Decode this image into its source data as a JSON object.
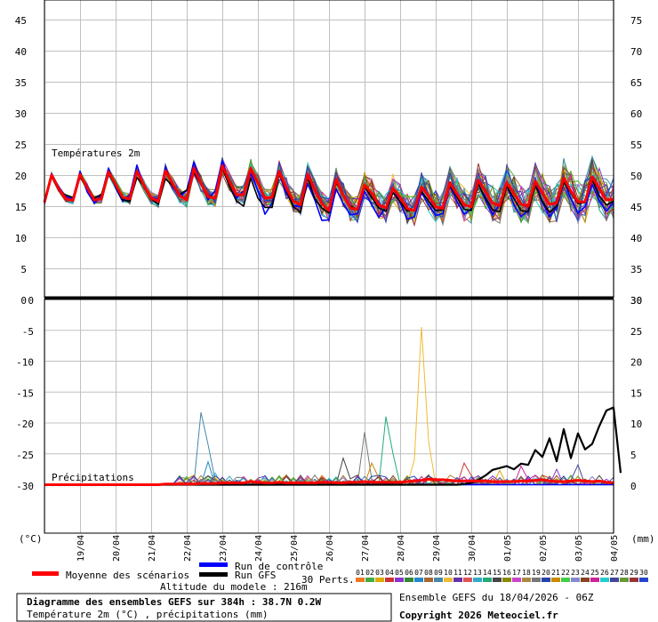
{
  "chart_data": [
    {
      "type": "line",
      "title": "Températures 2m",
      "unit": "(°C)",
      "left_ticks": [
        "45",
        "40",
        "35",
        "30",
        "25",
        "20",
        "15",
        "10",
        "5",
        "0"
      ],
      "right_ticks": [
        "75",
        "70",
        "65",
        "60",
        "55",
        "50",
        "45",
        "40",
        "35",
        "30"
      ],
      "ylim": [
        0,
        48
      ],
      "x_step_days": 0.25,
      "series": [
        {
          "name": "Moyenne des scénarios",
          "color": "#ff0000",
          "values": [
            15.6,
            20.0,
            17.8,
            16.2,
            15.9,
            20.1,
            18.0,
            16.0,
            16.2,
            20.5,
            18.5,
            16.4,
            16.2,
            20.6,
            18.3,
            16.3,
            15.8,
            20.7,
            18.6,
            16.7,
            16.0,
            21.1,
            18.6,
            16.5,
            16.3,
            21.5,
            19.0,
            16.8,
            16.9,
            21.1,
            18.7,
            16.3,
            16.4,
            20.6,
            17.9,
            15.8,
            15.2,
            20.1,
            17.6,
            15.4,
            14.3,
            19.3,
            16.8,
            14.7,
            14.5,
            18.4,
            17.1,
            15.2,
            14.7,
            17.9,
            16.4,
            14.6,
            14.3,
            18.1,
            16.6,
            14.9,
            14.6,
            18.8,
            16.9,
            15.2,
            14.9,
            19.2,
            17.3,
            15.5,
            15.1,
            18.8,
            17.0,
            15.3,
            15.0,
            19.0,
            17.1,
            15.3,
            15.5,
            19.5,
            17.4,
            15.7,
            15.7,
            19.7,
            17.8,
            16.0,
            16.1
          ]
        },
        {
          "name": "Run de contrôle",
          "color": "#0000ff",
          "values": [
            15.6,
            20.2,
            18.1,
            16.5,
            16.2,
            20.6,
            17.3,
            15.5,
            16.7,
            21.1,
            18.0,
            15.8,
            16.8,
            21.6,
            18.0,
            16.3,
            16.2,
            21.3,
            18.1,
            16.5,
            17.5,
            22.1,
            18.7,
            16.0,
            17.5,
            22.3,
            18.9,
            16.3,
            17.5,
            20.3,
            17.5,
            13.7,
            15.5,
            20.2,
            17.1,
            15.1,
            14.9,
            18.6,
            16.0,
            12.7,
            12.8,
            17.8,
            15.4,
            13.6,
            13.8,
            17.4,
            15.2,
            13.2,
            14.8,
            17.9,
            15.6,
            12.9,
            13.3,
            17.2,
            15.2,
            13.5,
            13.8,
            18.3,
            15.7,
            13.7,
            14.6,
            18.6,
            15.9,
            13.6,
            15.3,
            18.3,
            15.2,
            13.3,
            14.3,
            19.0,
            15.6,
            13.3,
            14.7,
            19.3,
            16.2,
            13.9,
            14.9,
            18.5,
            15.8,
            14.2,
            15.6
          ]
        },
        {
          "name": "Run GFS",
          "color": "#000000",
          "values": [
            15.6,
            19.8,
            17.5,
            16.8,
            16.4,
            19.7,
            17.8,
            16.3,
            16.9,
            20.2,
            18.2,
            16.0,
            15.8,
            19.6,
            18.2,
            16.2,
            15.3,
            19.4,
            18.3,
            16.9,
            17.6,
            20.4,
            18.5,
            16.7,
            16.4,
            21.1,
            18.2,
            15.8,
            15.0,
            19.5,
            16.3,
            14.8,
            14.8,
            20.2,
            17.6,
            14.9,
            14.0,
            19.6,
            16.2,
            14.7,
            13.9,
            18.8,
            16.8,
            15.0,
            14.5,
            18.1,
            16.4,
            14.7,
            14.2,
            17.2,
            15.7,
            14.2,
            14.5,
            17.4,
            15.8,
            14.3,
            14.4,
            18.4,
            16.4,
            14.5,
            14.3,
            18.5,
            16.3,
            14.4,
            14.1,
            18.2,
            16.2,
            14.3,
            14.1,
            18.3,
            15.8,
            14.0,
            15.0,
            18.8,
            17.1,
            15.4,
            15.6,
            19.3,
            16.6,
            15.2,
            15.8
          ]
        }
      ]
    },
    {
      "type": "line",
      "title": "Précipitations",
      "unit": "(mm)",
      "left_ticks": [
        "0",
        "-5",
        "-10",
        "-15",
        "-20",
        "-25",
        "-30"
      ],
      "right_ticks": [
        "30",
        "25",
        "20",
        "15",
        "10",
        "5",
        "0"
      ],
      "ylim": [
        0,
        30
      ],
      "x_step_days": 0.25,
      "series": [
        {
          "name": "Moyenne des scénarios",
          "color": "#ff0000",
          "values": [
            0,
            0,
            0,
            0,
            0,
            0,
            0,
            0,
            0,
            0,
            0,
            0,
            0,
            0,
            0,
            0,
            0,
            0.1,
            0.1,
            0.1,
            0.1,
            0.1,
            0.2,
            0.2,
            0.2,
            0.3,
            0.3,
            0.3,
            0.3,
            0.5,
            0.4,
            0.3,
            0.3,
            0.4,
            0.3,
            0.3,
            0.3,
            0.3,
            0.3,
            0.4,
            0.4,
            0.3,
            0.3,
            0.4,
            0.4,
            0.5,
            0.4,
            0.4,
            0.4,
            0.4,
            0.4,
            0.5,
            0.6,
            0.7,
            0.9,
            0.8,
            0.8,
            0.7,
            0.6,
            0.6,
            0.6,
            0.6,
            0.6,
            0.5,
            0.5,
            0.5,
            0.5,
            0.6,
            0.6,
            0.7,
            0.8,
            0.6,
            0.5,
            0.5,
            0.6,
            0.7,
            0.6,
            0.5,
            0.6,
            0.4,
            0.3
          ]
        },
        {
          "name": "Run de contrôle",
          "color": "#0000ff",
          "values": [
            0,
            0,
            0,
            0,
            0,
            0,
            0,
            0,
            0,
            0,
            0,
            0,
            0,
            0,
            0,
            0,
            0,
            0,
            0,
            0,
            0,
            0,
            0,
            0,
            0,
            0,
            0,
            0,
            0,
            0,
            0,
            0,
            0,
            0,
            0,
            0,
            0,
            0,
            0,
            0,
            0,
            0,
            0,
            0,
            0,
            0,
            0,
            0,
            0,
            0,
            0,
            0,
            0,
            0,
            0,
            0,
            0,
            0,
            0,
            0,
            0,
            0,
            0,
            0,
            0,
            0,
            0,
            0,
            0,
            0,
            0,
            0,
            0,
            0,
            0,
            0,
            0,
            0,
            0,
            0,
            0
          ]
        },
        {
          "name": "Run GFS",
          "color": "#000000",
          "values": [
            0,
            0,
            0,
            0,
            0,
            0,
            0,
            0,
            0,
            0,
            0,
            0,
            0,
            0,
            0,
            0,
            0,
            0,
            0,
            0,
            0,
            0,
            0,
            0,
            0,
            0,
            0,
            0,
            0,
            0,
            0,
            0,
            0,
            0,
            0,
            0,
            0,
            0,
            0,
            0,
            0,
            0,
            0,
            0,
            0,
            0,
            0,
            0,
            0,
            0,
            0,
            0,
            0,
            0,
            0,
            0,
            0,
            0,
            0,
            0.1,
            0.3,
            0.8,
            1.5,
            2.4,
            2.7,
            3.0,
            2.5,
            3.4,
            3.2,
            5.6,
            4.5,
            7.5,
            3.8,
            9.0,
            4.3,
            8.3,
            5.7,
            6.6,
            9.5,
            12.0,
            12.5,
            1.9
          ]
        }
      ]
    }
  ],
  "dates": [
    "19/04",
    "20/04",
    "21/04",
    "22/04",
    "23/04",
    "24/04",
    "25/04",
    "26/04",
    "27/04",
    "28/04",
    "29/04",
    "30/04",
    "01/05",
    "02/05",
    "03/05",
    "04/05"
  ],
  "perts_numbers": [
    "01",
    "02",
    "03",
    "04",
    "05",
    "06",
    "07",
    "08",
    "09",
    "10",
    "11",
    "12",
    "13",
    "14",
    "15",
    "16",
    "17",
    "18",
    "19",
    "20",
    "21",
    "22",
    "23",
    "24",
    "25",
    "26",
    "27",
    "28",
    "29",
    "30"
  ],
  "perts_colors": [
    "#ee7722",
    "#44aa44",
    "#ddaa00",
    "#cc3333",
    "#8833cc",
    "#338833",
    "#2288cc",
    "#aa6633",
    "#4488aa",
    "#eebb33",
    "#6633aa",
    "#dd5555",
    "#33aacc",
    "#22aa77",
    "#444444",
    "#888800",
    "#cc44cc",
    "#aa8844",
    "#777777",
    "#2244aa",
    "#cc8800",
    "#44cc44",
    "#8888cc",
    "#884422",
    "#cc2299",
    "#22cccc",
    "#444499",
    "#669933",
    "#993333",
    "#2244cc"
  ],
  "legend": {
    "control": "Run de contrôle",
    "gfs": "Run GFS",
    "mean": "Moyenne des scénarios",
    "perts": "30 Perts.",
    "altitude": "Altitude du modele : 216m"
  },
  "footer": {
    "title": "Diagramme des ensembles GEFS sur 384h : 38.7N 0.2W",
    "subtitle": "Température 2m (°C) , précipitations (mm)",
    "run": "Ensemble GEFS du 18/04/2026 - 06Z",
    "copyright": "Copyright 2026 Meteociel.fr"
  },
  "colors": {
    "mean": "#ff0000",
    "control": "#0000ff",
    "gfs": "#000000",
    "grid": "#c0c0c0"
  }
}
